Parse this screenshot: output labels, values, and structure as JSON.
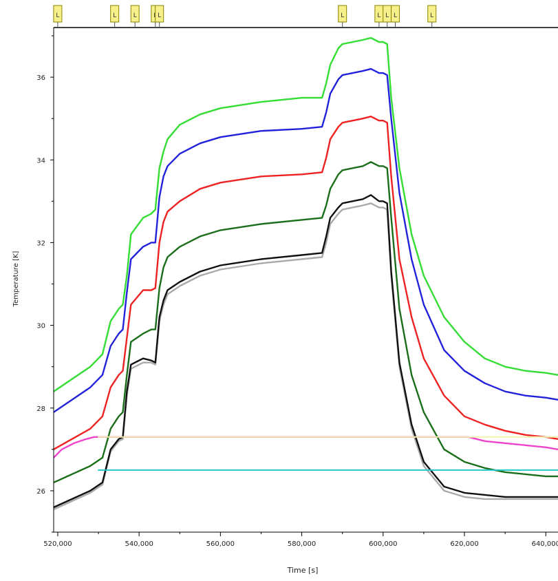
{
  "chart_data": {
    "type": "line",
    "title": "",
    "xlabel": "Time [s]",
    "ylabel": "Temperature [K]",
    "xlim": [
      519000,
      643000
    ],
    "ylim": [
      25,
      37.2
    ],
    "x_ticks": [
      520000,
      540000,
      560000,
      580000,
      600000,
      620000,
      640000
    ],
    "x_tick_labels": [
      "520,000",
      "540,000",
      "560,000",
      "580,000",
      "600,000",
      "620,000",
      "640,000"
    ],
    "y_ticks": [
      26,
      28,
      30,
      32,
      34,
      36
    ],
    "y_tick_labels": [
      "26",
      "28",
      "30",
      "32",
      "34",
      "36"
    ],
    "grid": false,
    "legend": "none",
    "markers": {
      "label": "L",
      "x": [
        520000,
        534000,
        539000,
        544000,
        545000,
        590000,
        599000,
        601000,
        603000,
        612000
      ],
      "fill": "#f5f08a",
      "stroke": "#8a8200"
    },
    "series": [
      {
        "color": "#33dd33",
        "x": [
          519000,
          528000,
          531000,
          533000,
          535000,
          536000,
          537000,
          538000,
          541000,
          543000,
          544000,
          545000,
          546000,
          547000,
          550000,
          555000,
          560000,
          570000,
          580000,
          585000,
          586000,
          587000,
          589000,
          590000,
          595000,
          597000,
          599000,
          600000,
          601000,
          602000,
          604000,
          607000,
          610000,
          615000,
          620000,
          625000,
          630000,
          635000,
          640000,
          643000
        ],
        "y": [
          28.4,
          29.0,
          29.3,
          30.1,
          30.4,
          30.5,
          31.2,
          32.2,
          32.6,
          32.7,
          32.8,
          33.8,
          34.2,
          34.5,
          34.85,
          35.1,
          35.25,
          35.4,
          35.5,
          35.5,
          35.85,
          36.3,
          36.7,
          36.8,
          36.9,
          36.95,
          36.85,
          36.85,
          36.8,
          35.5,
          33.8,
          32.2,
          31.2,
          30.2,
          29.6,
          29.2,
          29.0,
          28.9,
          28.85,
          28.8
        ]
      },
      {
        "color": "#2222dd",
        "x": [
          519000,
          528000,
          531000,
          533000,
          535000,
          536000,
          537000,
          538000,
          541000,
          543000,
          544000,
          545000,
          546000,
          547000,
          550000,
          555000,
          560000,
          570000,
          580000,
          585000,
          586000,
          587000,
          589000,
          590000,
          595000,
          597000,
          599000,
          600000,
          601000,
          602000,
          604000,
          607000,
          610000,
          615000,
          620000,
          625000,
          630000,
          635000,
          640000,
          643000
        ],
        "y": [
          27.9,
          28.5,
          28.8,
          29.5,
          29.8,
          29.9,
          30.8,
          31.6,
          31.9,
          32.0,
          32.0,
          33.1,
          33.6,
          33.85,
          34.15,
          34.4,
          34.55,
          34.7,
          34.75,
          34.8,
          35.15,
          35.6,
          35.95,
          36.05,
          36.15,
          36.2,
          36.1,
          36.1,
          36.05,
          35.0,
          33.2,
          31.6,
          30.5,
          29.4,
          28.9,
          28.6,
          28.4,
          28.3,
          28.25,
          28.2
        ]
      },
      {
        "color": "#ee2222",
        "x": [
          519000,
          528000,
          531000,
          533000,
          535000,
          536000,
          537000,
          538000,
          541000,
          543000,
          544000,
          545000,
          546000,
          547000,
          550000,
          555000,
          560000,
          570000,
          580000,
          585000,
          586000,
          587000,
          589000,
          590000,
          595000,
          597000,
          599000,
          600000,
          601000,
          602000,
          604000,
          607000,
          610000,
          615000,
          620000,
          625000,
          630000,
          635000,
          640000,
          643000
        ],
        "y": [
          27.0,
          27.5,
          27.8,
          28.5,
          28.8,
          28.9,
          29.7,
          30.5,
          30.85,
          30.85,
          30.9,
          32.0,
          32.5,
          32.75,
          33.0,
          33.3,
          33.45,
          33.6,
          33.65,
          33.7,
          34.05,
          34.5,
          34.8,
          34.9,
          35.0,
          35.05,
          34.95,
          34.95,
          34.9,
          33.6,
          31.6,
          30.2,
          29.2,
          28.3,
          27.8,
          27.6,
          27.45,
          27.35,
          27.3,
          27.25
        ]
      },
      {
        "color": "#ee44cc",
        "x": [
          519000,
          521000,
          524000,
          527000,
          529000,
          530000,
          621000,
          625000,
          630000,
          635000,
          640000,
          643000
        ],
        "y": [
          26.8,
          27.0,
          27.15,
          27.25,
          27.3,
          27.3,
          27.3,
          27.2,
          27.15,
          27.1,
          27.05,
          27.0
        ]
      },
      {
        "color": "#1a6e1a",
        "x": [
          519000,
          528000,
          531000,
          533000,
          535000,
          536000,
          537000,
          538000,
          541000,
          543000,
          544000,
          545000,
          546000,
          547000,
          550000,
          555000,
          560000,
          570000,
          580000,
          585000,
          586000,
          587000,
          589000,
          590000,
          595000,
          597000,
          599000,
          600000,
          601000,
          602000,
          604000,
          607000,
          610000,
          615000,
          620000,
          625000,
          630000,
          635000,
          640000,
          643000
        ],
        "y": [
          26.2,
          26.6,
          26.8,
          27.5,
          27.8,
          27.9,
          28.8,
          29.6,
          29.8,
          29.9,
          29.9,
          30.9,
          31.4,
          31.65,
          31.9,
          32.15,
          32.3,
          32.45,
          32.55,
          32.6,
          32.9,
          33.3,
          33.65,
          33.75,
          33.85,
          33.95,
          33.85,
          33.85,
          33.8,
          32.6,
          30.4,
          28.8,
          27.9,
          27.0,
          26.7,
          26.55,
          26.45,
          26.4,
          26.35,
          26.35
        ]
      },
      {
        "color": "#aaaaaa",
        "x": [
          519000,
          528000,
          531000,
          533000,
          535000,
          536000,
          537000,
          538000,
          541000,
          543000,
          544000,
          545000,
          546000,
          547000,
          550000,
          555000,
          560000,
          570000,
          580000,
          585000,
          586000,
          587000,
          589000,
          590000,
          595000,
          597000,
          599000,
          600000,
          601000,
          602000,
          604000,
          607000,
          610000,
          615000,
          620000,
          625000,
          630000,
          635000,
          640000,
          643000
        ],
        "y": [
          25.55,
          25.95,
          26.15,
          26.95,
          27.2,
          27.25,
          28.3,
          28.95,
          29.1,
          29.1,
          29.05,
          30.1,
          30.5,
          30.75,
          30.95,
          31.2,
          31.35,
          31.5,
          31.6,
          31.65,
          32.0,
          32.45,
          32.7,
          32.8,
          32.9,
          32.95,
          32.85,
          32.85,
          32.8,
          31.2,
          29.0,
          27.5,
          26.6,
          26.0,
          25.85,
          25.8,
          25.8,
          25.8,
          25.8,
          25.8
        ]
      },
      {
        "color": "#111111",
        "x": [
          519000,
          528000,
          531000,
          533000,
          535000,
          536000,
          537000,
          538000,
          541000,
          543000,
          544000,
          545000,
          546000,
          547000,
          550000,
          555000,
          560000,
          570000,
          580000,
          585000,
          586000,
          587000,
          589000,
          590000,
          595000,
          597000,
          599000,
          600000,
          601000,
          602000,
          604000,
          607000,
          610000,
          615000,
          620000,
          625000,
          630000,
          635000,
          640000,
          643000
        ],
        "y": [
          25.6,
          26.0,
          26.2,
          27.0,
          27.25,
          27.3,
          28.4,
          29.05,
          29.2,
          29.15,
          29.1,
          30.2,
          30.6,
          30.85,
          31.05,
          31.3,
          31.45,
          31.6,
          31.7,
          31.75,
          32.15,
          32.6,
          32.85,
          32.95,
          33.05,
          33.15,
          33.0,
          33.0,
          32.95,
          31.3,
          29.1,
          27.6,
          26.7,
          26.1,
          25.95,
          25.9,
          25.85,
          25.85,
          25.85,
          25.85
        ]
      },
      {
        "color": "#f2f2b0",
        "x": [
          530000,
          643000
        ],
        "y": [
          27.3,
          27.3
        ]
      },
      {
        "color": "#22c8c8",
        "x": [
          530000,
          643000
        ],
        "y": [
          26.5,
          26.5
        ]
      }
    ]
  }
}
